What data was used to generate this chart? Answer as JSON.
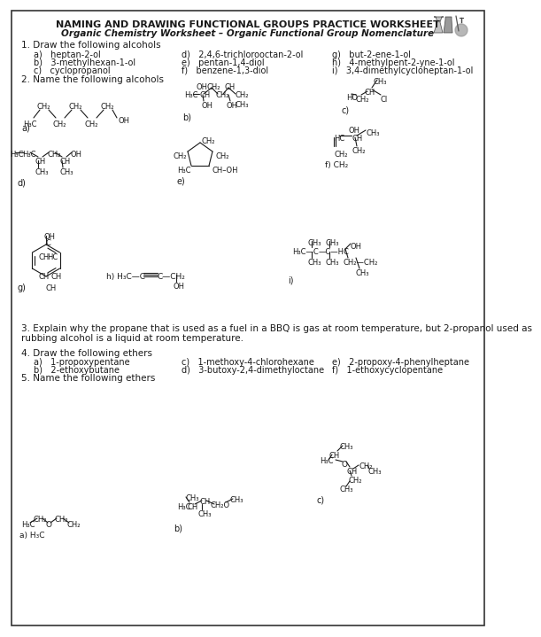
{
  "title1": "NAMING AND DRAWING FUNCTIONAL GROUPS PRACTICE WORKSHEET",
  "title2": "Organic Chemistry Worksheet – Organic Functional Group Nomenclature",
  "s1_header": "1. Draw the following alcohols",
  "s1_col1": [
    "a)   heptan-2-ol",
    "b)   3-methylhexan-1-ol",
    "c)   cyclopropanol"
  ],
  "s1_col2": [
    "d)   2,4,6-trichlorooctan-2-ol",
    "e)   pentan-1,4-diol",
    "f)   benzene-1,3-diol"
  ],
  "s1_col3": [
    "g)   but-2-ene-1-ol",
    "h)   4-methylpent-2-yne-1-ol",
    "i)   3,4-dimethylcycloheptan-1-ol"
  ],
  "s2_header": "2. Name the following alcohols",
  "s3_text1": "3. Explain why the propane that is used as a fuel in a BBQ is gas at room temperature, but 2-propanol used as",
  "s3_text2": "rubbing alcohol is a liquid at room temperature.",
  "s4_header": "4. Draw the following ethers",
  "s4_col1": [
    "a)   1-propoxypentane",
    "b)   2-ethoxybutane"
  ],
  "s4_col2": [
    "c)   1-methoxy-4-chlorohexane",
    "d)   3-butoxy-2,4-dimethyloctane"
  ],
  "s4_col3": [
    "e)   2-propoxy-4-phenylheptane",
    "f)   1-ethoxycyclopentane"
  ],
  "s5_header": "5. Name the following ethers",
  "bg": "#ffffff"
}
